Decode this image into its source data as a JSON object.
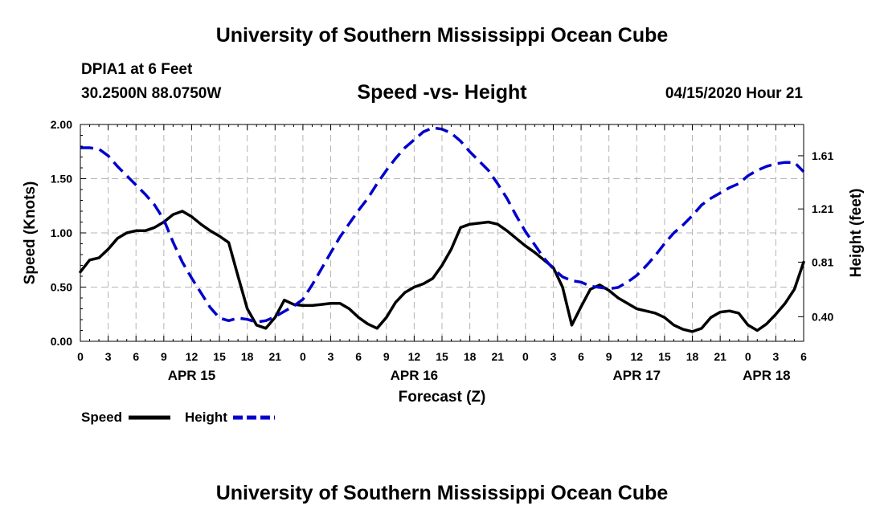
{
  "page": {
    "title_top": "University of Southern Mississippi Ocean Cube",
    "title_bottom": "University of Southern Mississippi Ocean Cube",
    "station_name": "DPIA1 at 6 Feet",
    "station_coords": "30.2500N 88.0750W",
    "chart_title": "Speed -vs- Height",
    "forecast_time": "04/15/2020 Hour 21"
  },
  "chart_data": {
    "type": "line",
    "title": "Speed -vs- Height",
    "xlabel": "Forecast (Z)",
    "ylabel": "Speed (Knots)",
    "y2label": "Height (feet)",
    "x_hours_range": [
      0,
      78
    ],
    "ylim": [
      0,
      2.0
    ],
    "y2lim": [
      0.215,
      1.845
    ],
    "grid": true,
    "legend_position": "bottom-left",
    "x_tick_labels": [
      "0",
      "3",
      "6",
      "9",
      "12",
      "15",
      "18",
      "21",
      "0",
      "3",
      "6",
      "9",
      "12",
      "15",
      "18",
      "21",
      "0",
      "3",
      "6",
      "9",
      "12",
      "15",
      "18",
      "21",
      "0",
      "3",
      "6"
    ],
    "y_tick_labels": [
      "0.00",
      "0.50",
      "1.00",
      "1.50",
      "2.00"
    ],
    "y_ticks": [
      0,
      0.5,
      1.0,
      1.5,
      2.0
    ],
    "y2_tick_labels": [
      "0.40",
      "0.81",
      "1.21",
      "1.61"
    ],
    "y2_ticks": [
      0.4,
      0.81,
      1.21,
      1.61
    ],
    "date_labels": [
      {
        "label": "APR 15",
        "hour": 12
      },
      {
        "label": "APR 16",
        "hour": 36
      },
      {
        "label": "APR 17",
        "hour": 60
      },
      {
        "label": "APR 18",
        "hour": 74
      }
    ],
    "series": [
      {
        "name": "Speed",
        "axis": "left",
        "color": "#000000",
        "dash": false,
        "x": [
          0,
          1,
          2,
          3,
          4,
          5,
          6,
          7,
          8,
          9,
          10,
          11,
          12,
          13,
          14,
          15,
          16,
          17,
          18,
          19,
          20,
          21,
          22,
          23,
          24,
          25,
          26,
          27,
          28,
          29,
          30,
          31,
          32,
          33,
          34,
          35,
          36,
          37,
          38,
          39,
          40,
          41,
          42,
          43,
          44,
          45,
          46,
          47,
          48,
          49,
          50,
          51,
          52,
          53,
          54,
          55,
          56,
          57,
          58,
          59,
          60,
          61,
          62,
          63,
          64,
          65,
          66,
          67,
          68,
          69,
          70,
          71,
          72,
          73,
          74,
          75,
          76,
          77,
          78
        ],
        "values": [
          0.64,
          0.75,
          0.77,
          0.85,
          0.95,
          1.0,
          1.02,
          1.02,
          1.05,
          1.1,
          1.17,
          1.2,
          1.15,
          1.08,
          1.02,
          0.97,
          0.91,
          0.6,
          0.3,
          0.15,
          0.12,
          0.22,
          0.38,
          0.34,
          0.33,
          0.33,
          0.34,
          0.35,
          0.35,
          0.3,
          0.22,
          0.16,
          0.12,
          0.22,
          0.36,
          0.45,
          0.5,
          0.53,
          0.58,
          0.7,
          0.85,
          1.05,
          1.08,
          1.09,
          1.1,
          1.08,
          1.02,
          0.95,
          0.88,
          0.82,
          0.75,
          0.68,
          0.5,
          0.15,
          0.32,
          0.48,
          0.52,
          0.47,
          0.4,
          0.35,
          0.3,
          0.28,
          0.26,
          0.22,
          0.15,
          0.11,
          0.09,
          0.12,
          0.22,
          0.27,
          0.28,
          0.26,
          0.15,
          0.1,
          0.16,
          0.25,
          0.35,
          0.48,
          0.73
        ]
      },
      {
        "name": "Height",
        "axis": "right",
        "color": "#0000cc",
        "dash": true,
        "x": [
          0,
          1,
          2,
          3,
          4,
          5,
          6,
          7,
          8,
          9,
          10,
          11,
          12,
          13,
          14,
          15,
          16,
          17,
          18,
          19,
          20,
          21,
          22,
          23,
          24,
          25,
          26,
          27,
          28,
          29,
          30,
          31,
          32,
          33,
          34,
          35,
          36,
          37,
          38,
          39,
          40,
          41,
          42,
          43,
          44,
          45,
          46,
          47,
          48,
          49,
          50,
          51,
          52,
          53,
          54,
          55,
          56,
          57,
          58,
          59,
          60,
          61,
          62,
          63,
          64,
          65,
          66,
          67,
          68,
          69,
          70,
          71,
          72,
          73,
          74,
          75,
          76,
          77,
          78
        ],
        "values": [
          1.67,
          1.67,
          1.66,
          1.61,
          1.53,
          1.46,
          1.39,
          1.32,
          1.24,
          1.13,
          0.96,
          0.81,
          0.69,
          0.58,
          0.47,
          0.39,
          0.37,
          0.39,
          0.38,
          0.36,
          0.37,
          0.4,
          0.44,
          0.48,
          0.53,
          0.64,
          0.76,
          0.88,
          1.0,
          1.1,
          1.2,
          1.29,
          1.4,
          1.5,
          1.59,
          1.67,
          1.73,
          1.79,
          1.82,
          1.81,
          1.78,
          1.72,
          1.64,
          1.57,
          1.5,
          1.4,
          1.29,
          1.16,
          1.04,
          0.94,
          0.84,
          0.76,
          0.7,
          0.67,
          0.66,
          0.63,
          0.62,
          0.61,
          0.62,
          0.66,
          0.71,
          0.78,
          0.86,
          0.95,
          1.03,
          1.09,
          1.16,
          1.24,
          1.29,
          1.33,
          1.37,
          1.4,
          1.46,
          1.5,
          1.53,
          1.55,
          1.56,
          1.56,
          1.49
        ]
      }
    ]
  }
}
